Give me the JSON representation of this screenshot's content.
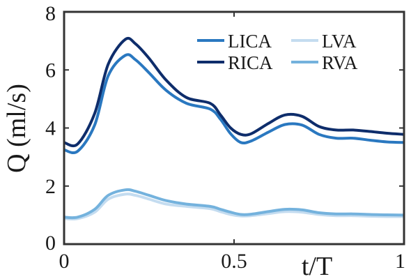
{
  "chart_data": {
    "type": "line",
    "title": "",
    "xlabel": "t/T",
    "ylabel": "Q (ml/s)",
    "xlim": [
      0,
      1
    ],
    "ylim": [
      0,
      8
    ],
    "xticks": [
      "0",
      "0.5",
      "1"
    ],
    "yticks": [
      "0",
      "2",
      "4",
      "6",
      "8"
    ],
    "grid": false,
    "legend_position": "top-right",
    "x": [
      0,
      0.04,
      0.09,
      0.13,
      0.18,
      0.21,
      0.25,
      0.3,
      0.36,
      0.43,
      0.46,
      0.49,
      0.52,
      0.55,
      0.6,
      0.65,
      0.7,
      0.75,
      0.8,
      0.85,
      0.9,
      0.95,
      1.0
    ],
    "series": [
      {
        "name": "LICA",
        "color": "#2a78c0",
        "values": [
          3.25,
          3.2,
          4.1,
          5.8,
          6.5,
          6.35,
          5.9,
          5.3,
          4.85,
          4.65,
          4.3,
          3.8,
          3.5,
          3.55,
          3.85,
          4.12,
          4.1,
          3.78,
          3.65,
          3.65,
          3.58,
          3.52,
          3.5
        ]
      },
      {
        "name": "RICA",
        "color": "#0e2d6b",
        "values": [
          3.5,
          3.45,
          4.5,
          6.2,
          7.05,
          6.9,
          6.4,
          5.65,
          5.05,
          4.85,
          4.45,
          4.0,
          3.78,
          3.8,
          4.15,
          4.45,
          4.4,
          4.05,
          3.93,
          3.93,
          3.88,
          3.82,
          3.78
        ]
      },
      {
        "name": "LVA",
        "color": "#c4dcf0",
        "values": [
          0.88,
          0.88,
          1.1,
          1.55,
          1.72,
          1.68,
          1.55,
          1.38,
          1.3,
          1.22,
          1.12,
          1.02,
          0.97,
          0.98,
          1.05,
          1.12,
          1.1,
          1.02,
          0.98,
          0.98,
          0.96,
          0.95,
          0.95
        ]
      },
      {
        "name": "RVA",
        "color": "#74b2dd",
        "values": [
          0.93,
          0.93,
          1.2,
          1.68,
          1.87,
          1.82,
          1.68,
          1.5,
          1.38,
          1.3,
          1.2,
          1.1,
          1.02,
          1.03,
          1.12,
          1.2,
          1.18,
          1.08,
          1.04,
          1.04,
          1.02,
          1.01,
          1.0
        ]
      }
    ],
    "legend_order": [
      "LICA",
      "LVA",
      "RICA",
      "RVA"
    ]
  }
}
